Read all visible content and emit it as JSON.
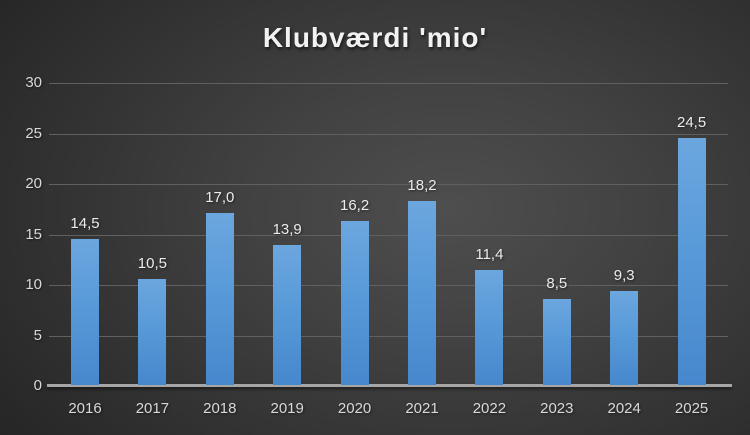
{
  "chart_data": {
    "type": "bar",
    "title": "Klubværdi 'mio'",
    "categories": [
      "2016",
      "2017",
      "2018",
      "2019",
      "2020",
      "2021",
      "2022",
      "2023",
      "2024",
      "2025"
    ],
    "values": [
      14.5,
      10.5,
      17.0,
      13.9,
      16.2,
      18.2,
      11.4,
      8.5,
      9.3,
      24.5
    ],
    "value_labels": [
      "14,5",
      "10,5",
      "17,0",
      "13,9",
      "16,2",
      "18,2",
      "11,4",
      "8,5",
      "9,3",
      "24,5"
    ],
    "xlabel": "",
    "ylabel": "",
    "ylim": [
      0,
      30
    ],
    "y_ticks": [
      0,
      5,
      10,
      15,
      20,
      25,
      30
    ],
    "grid": true,
    "legend": "none",
    "decimal_separator": ","
  },
  "colors": {
    "background_center": "#4e4e4e",
    "background_corner": "#232323",
    "bar_top": "#6ca6df",
    "bar_bottom": "#4787cd",
    "gridline": "#606060",
    "axis_line": "#a6a6a6",
    "tick_text": "#d9d9d9",
    "value_text": "#ececec",
    "title_text": "#f2f2f2"
  }
}
